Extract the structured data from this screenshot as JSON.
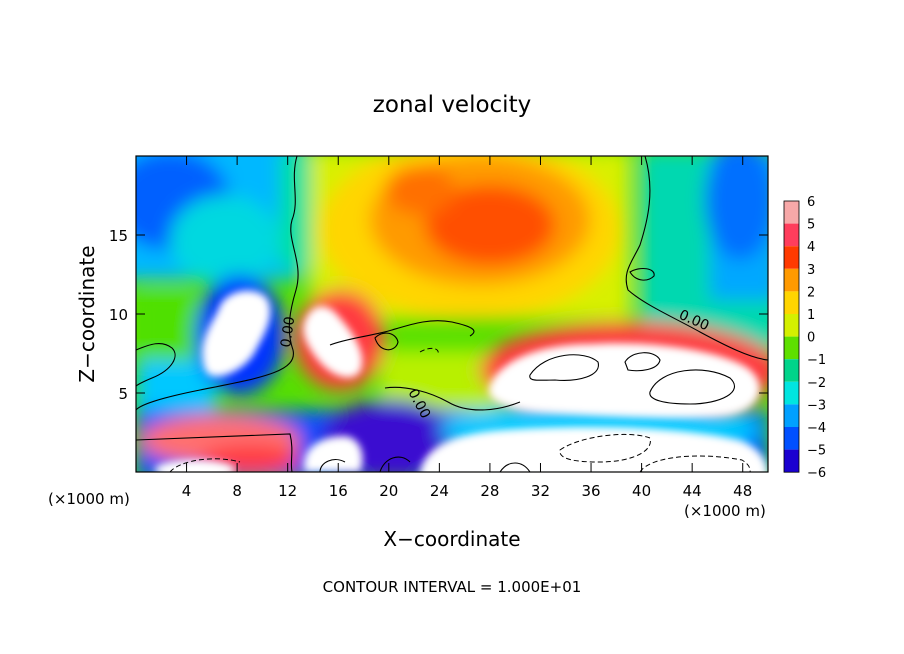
{
  "chart_data": {
    "type": "heatmap",
    "title": "zonal velocity",
    "xlabel": "X−coordinate",
    "ylabel": "Z−coordinate",
    "x_unit_left": "(×1000 m)",
    "x_unit_right": "(×1000 m)",
    "footer": "CONTOUR INTERVAL = 1.000E+01",
    "xlim": [
      0,
      50
    ],
    "ylim": [
      0,
      20
    ],
    "x_ticks": [
      4,
      8,
      12,
      16,
      20,
      24,
      28,
      32,
      36,
      40,
      44,
      48
    ],
    "x_tick_labels": [
      "4",
      "8",
      "12",
      "16",
      "20",
      "24",
      "28",
      "32",
      "36",
      "40",
      "44",
      "48"
    ],
    "y_ticks": [
      5,
      10,
      15
    ],
    "y_tick_labels": [
      "5",
      "10",
      "15"
    ],
    "colorbar": {
      "levels": [
        6,
        5,
        4,
        3,
        2,
        1,
        0,
        -1,
        -2,
        -3,
        -4,
        -5,
        -6
      ],
      "labels": [
        "6",
        "5",
        "4",
        "3",
        "2",
        "1",
        "0",
        "−1",
        "−2",
        "−3",
        "−4",
        "−5",
        "−6"
      ],
      "colors": [
        "#f7a8a8",
        "#ff3d5c",
        "#ff3a00",
        "#ff9a00",
        "#ffd500",
        "#d4f000",
        "#5ee000",
        "#00d48a",
        "#00e5e0",
        "#00a0ff",
        "#0050ff",
        "#1a00d0",
        "#7a00b0"
      ]
    },
    "contour_labels": [
      "0.00",
      "0.00",
      "0.00",
      "0.00"
    ]
  }
}
